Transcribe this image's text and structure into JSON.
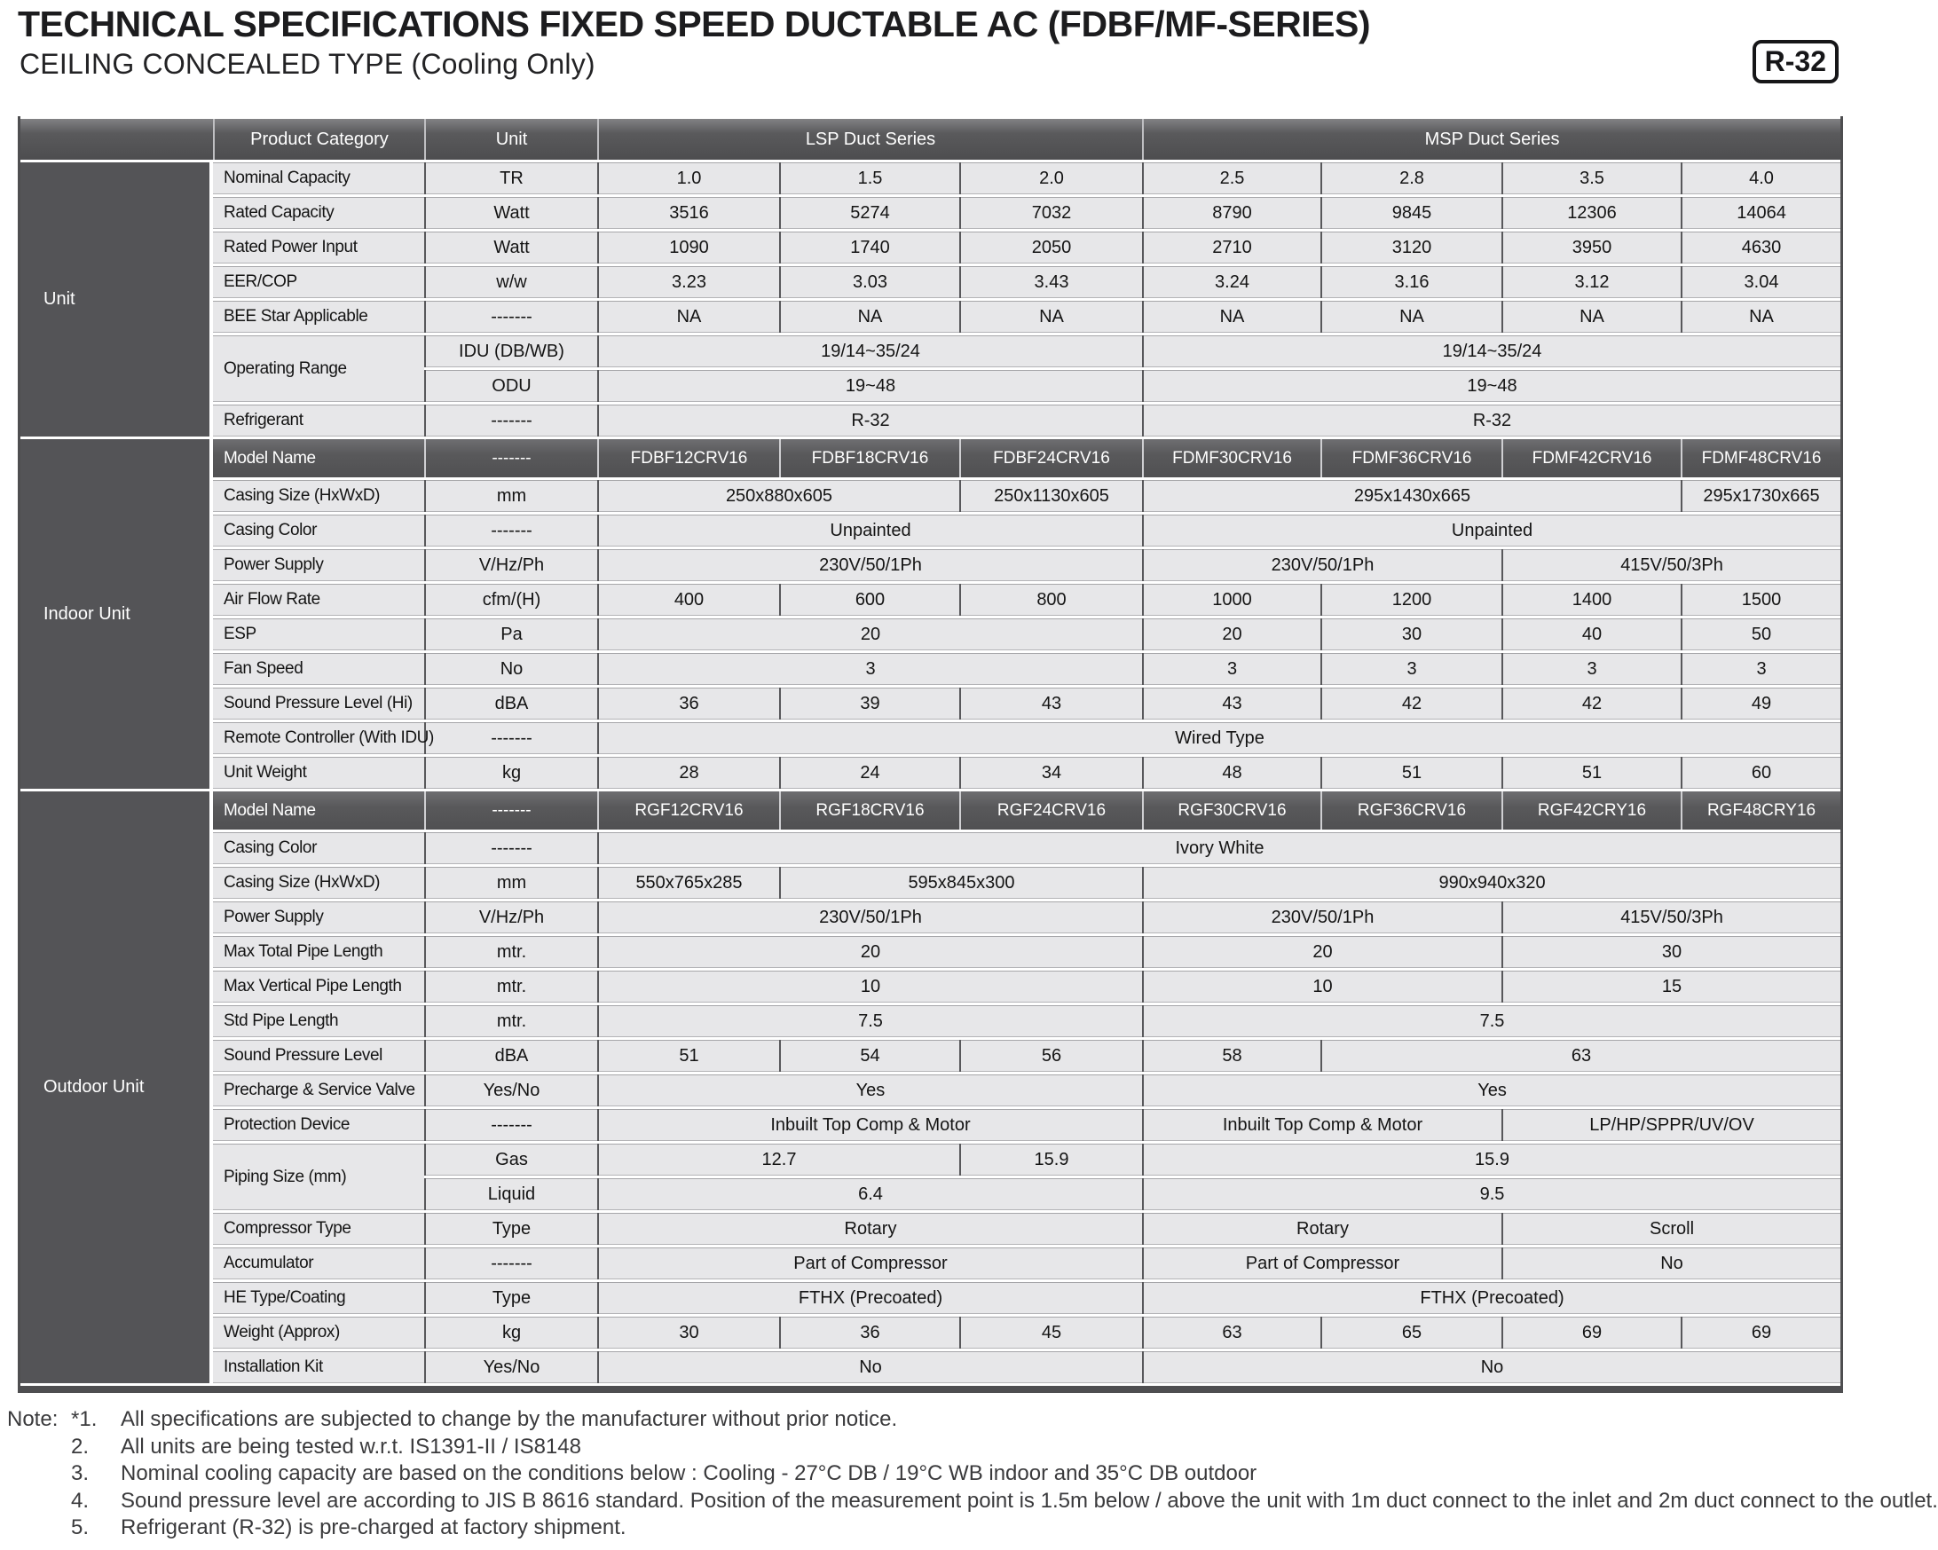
{
  "page": {
    "title": "TECHNICAL SPECIFICATIONS FIXED SPEED DUCTABLE AC (FDBF/MF-SERIES)",
    "subtitle": "CEILING CONCEALED  TYPE (Cooling Only)",
    "refrigerant_badge": "R-32"
  },
  "colors": {
    "header_dark": "#59595b",
    "section_dark": "#545457",
    "cell_light": "#e7e7e9",
    "text_dark": "#141414",
    "text_light": "#ffffff"
  },
  "table": {
    "header": {
      "corner": "",
      "product_category": "Product Category",
      "unit": "Unit",
      "groups": [
        {
          "label": "LSP Duct Series",
          "span": 3
        },
        {
          "label": "MSP Duct Series",
          "span": 4
        }
      ]
    },
    "sections": [
      {
        "label": "Unit",
        "rows": [
          {
            "label": "Nominal Capacity",
            "unit": "TR",
            "cells": [
              {
                "v": "1.0"
              },
              {
                "v": "1.5"
              },
              {
                "v": "2.0"
              },
              {
                "v": "2.5"
              },
              {
                "v": "2.8"
              },
              {
                "v": "3.5"
              },
              {
                "v": "4.0"
              }
            ]
          },
          {
            "label": "Rated Capacity",
            "unit": "Watt",
            "cells": [
              {
                "v": "3516"
              },
              {
                "v": "5274"
              },
              {
                "v": "7032"
              },
              {
                "v": "8790"
              },
              {
                "v": "9845"
              },
              {
                "v": "12306"
              },
              {
                "v": "14064"
              }
            ]
          },
          {
            "label": "Rated Power Input",
            "unit": "Watt",
            "cells": [
              {
                "v": "1090"
              },
              {
                "v": "1740"
              },
              {
                "v": "2050"
              },
              {
                "v": "2710"
              },
              {
                "v": "3120"
              },
              {
                "v": "3950"
              },
              {
                "v": "4630"
              }
            ]
          },
          {
            "label": "EER/COP",
            "unit": "w/w",
            "cells": [
              {
                "v": "3.23"
              },
              {
                "v": "3.03"
              },
              {
                "v": "3.43"
              },
              {
                "v": "3.24"
              },
              {
                "v": "3.16"
              },
              {
                "v": "3.12"
              },
              {
                "v": "3.04"
              }
            ]
          },
          {
            "label": "BEE Star Applicable",
            "unit": "-------",
            "cells": [
              {
                "v": "NA"
              },
              {
                "v": "NA"
              },
              {
                "v": "NA"
              },
              {
                "v": "NA"
              },
              {
                "v": "NA"
              },
              {
                "v": "NA"
              },
              {
                "v": "NA"
              }
            ]
          },
          {
            "label": "Operating Range",
            "label_rowspan": 2,
            "unit": "IDU (DB/WB)",
            "cells": [
              {
                "v": "19/14~35/24",
                "span": 3
              },
              {
                "v": "19/14~35/24",
                "span": 4
              }
            ]
          },
          {
            "unit": "ODU",
            "cells": [
              {
                "v": "19~48",
                "span": 3
              },
              {
                "v": "19~48",
                "span": 4
              }
            ]
          },
          {
            "label": "Refrigerant",
            "unit": "-------",
            "cells": [
              {
                "v": "R-32",
                "span": 3
              },
              {
                "v": "R-32",
                "span": 4
              }
            ]
          }
        ]
      },
      {
        "label": "Indoor Unit",
        "rows": [
          {
            "dark": true,
            "label": "Model Name",
            "unit": "-------",
            "cells": [
              {
                "v": "FDBF12CRV16"
              },
              {
                "v": "FDBF18CRV16"
              },
              {
                "v": "FDBF24CRV16"
              },
              {
                "v": "FDMF30CRV16"
              },
              {
                "v": "FDMF36CRV16"
              },
              {
                "v": "FDMF42CRV16"
              },
              {
                "v": "FDMF48CRV16"
              }
            ]
          },
          {
            "label": "Casing Size (HxWxD)",
            "unit": "mm",
            "cells": [
              {
                "v": "250x880x605",
                "span": 2
              },
              {
                "v": "250x1130x605"
              },
              {
                "v": "295x1430x665",
                "span": 3
              },
              {
                "v": "295x1730x665"
              }
            ]
          },
          {
            "label": "Casing Color",
            "unit": "-------",
            "cells": [
              {
                "v": "Unpainted",
                "span": 3
              },
              {
                "v": "Unpainted",
                "span": 4
              }
            ]
          },
          {
            "label": "Power Supply",
            "unit": "V/Hz/Ph",
            "cells": [
              {
                "v": "230V/50/1Ph",
                "span": 3
              },
              {
                "v": "230V/50/1Ph",
                "span": 2
              },
              {
                "v": "415V/50/3Ph",
                "span": 2
              }
            ]
          },
          {
            "label": "Air Flow Rate",
            "unit": "cfm/(H)",
            "cells": [
              {
                "v": "400"
              },
              {
                "v": "600"
              },
              {
                "v": "800"
              },
              {
                "v": "1000"
              },
              {
                "v": "1200"
              },
              {
                "v": "1400"
              },
              {
                "v": "1500"
              }
            ]
          },
          {
            "label": "ESP",
            "unit": "Pa",
            "cells": [
              {
                "v": "20",
                "span": 3
              },
              {
                "v": "20"
              },
              {
                "v": "30"
              },
              {
                "v": "40"
              },
              {
                "v": "50"
              }
            ]
          },
          {
            "label": "Fan Speed",
            "unit": "No",
            "cells": [
              {
                "v": "3",
                "span": 3
              },
              {
                "v": "3"
              },
              {
                "v": "3"
              },
              {
                "v": "3"
              },
              {
                "v": "3"
              }
            ]
          },
          {
            "label": "Sound Pressure Level (Hi)",
            "unit": "dBA",
            "cells": [
              {
                "v": "36"
              },
              {
                "v": "39"
              },
              {
                "v": "43"
              },
              {
                "v": "43"
              },
              {
                "v": "42"
              },
              {
                "v": "42"
              },
              {
                "v": "49"
              }
            ]
          },
          {
            "label": "Remote Controller (With IDU)",
            "unit": "-------",
            "cells": [
              {
                "v": "Wired Type",
                "span": 7
              }
            ]
          },
          {
            "label": "Unit Weight",
            "unit": "kg",
            "cells": [
              {
                "v": "28"
              },
              {
                "v": "24"
              },
              {
                "v": "34"
              },
              {
                "v": "48"
              },
              {
                "v": "51"
              },
              {
                "v": "51"
              },
              {
                "v": "60"
              }
            ]
          }
        ]
      },
      {
        "label": "Outdoor Unit",
        "rows": [
          {
            "dark": true,
            "label": "Model Name",
            "unit": "-------",
            "cells": [
              {
                "v": "RGF12CRV16"
              },
              {
                "v": "RGF18CRV16"
              },
              {
                "v": "RGF24CRV16"
              },
              {
                "v": "RGF30CRV16"
              },
              {
                "v": "RGF36CRV16"
              },
              {
                "v": "RGF42CRY16"
              },
              {
                "v": "RGF48CRY16"
              }
            ]
          },
          {
            "label": "Casing Color",
            "unit": "-------",
            "cells": [
              {
                "v": "Ivory White",
                "span": 7
              }
            ]
          },
          {
            "label": "Casing Size (HxWxD)",
            "unit": "mm",
            "cells": [
              {
                "v": "550x765x285"
              },
              {
                "v": "595x845x300",
                "span": 2
              },
              {
                "v": "990x940x320",
                "span": 4
              }
            ]
          },
          {
            "label": "Power Supply",
            "unit": "V/Hz/Ph",
            "cells": [
              {
                "v": "230V/50/1Ph",
                "span": 3
              },
              {
                "v": "230V/50/1Ph",
                "span": 2
              },
              {
                "v": "415V/50/3Ph",
                "span": 2
              }
            ]
          },
          {
            "label": "Max Total Pipe Length",
            "unit": "mtr.",
            "cells": [
              {
                "v": "20",
                "span": 3
              },
              {
                "v": "20",
                "span": 2
              },
              {
                "v": "30",
                "span": 2
              }
            ]
          },
          {
            "label": "Max Vertical Pipe Length",
            "unit": "mtr.",
            "cells": [
              {
                "v": "10",
                "span": 3
              },
              {
                "v": "10",
                "span": 2
              },
              {
                "v": "15",
                "span": 2
              }
            ]
          },
          {
            "label": "Std Pipe Length",
            "unit": "mtr.",
            "cells": [
              {
                "v": "7.5",
                "span": 3
              },
              {
                "v": "7.5",
                "span": 4
              }
            ]
          },
          {
            "label": "Sound Pressure Level",
            "unit": "dBA",
            "cells": [
              {
                "v": "51"
              },
              {
                "v": "54"
              },
              {
                "v": "56"
              },
              {
                "v": "58"
              },
              {
                "v": "63",
                "span": 3
              }
            ]
          },
          {
            "label": "Precharge & Service Valve",
            "unit": "Yes/No",
            "cells": [
              {
                "v": "Yes",
                "span": 3
              },
              {
                "v": "Yes",
                "span": 4
              }
            ]
          },
          {
            "label": "Protection Device",
            "unit": "-------",
            "cells": [
              {
                "v": "Inbuilt Top Comp & Motor",
                "span": 3
              },
              {
                "v": "Inbuilt Top Comp & Motor",
                "span": 2
              },
              {
                "v": "LP/HP/SPPR/UV/OV",
                "span": 2
              }
            ]
          },
          {
            "label": "Piping Size (mm)",
            "label_rowspan": 2,
            "unit": "Gas",
            "cells": [
              {
                "v": "12.7",
                "span": 2
              },
              {
                "v": "15.9"
              },
              {
                "v": "15.9",
                "span": 4
              }
            ]
          },
          {
            "unit": "Liquid",
            "cells": [
              {
                "v": "6.4",
                "span": 3
              },
              {
                "v": "9.5",
                "span": 4
              }
            ]
          },
          {
            "label": "Compressor Type",
            "unit": "Type",
            "cells": [
              {
                "v": "Rotary",
                "span": 3
              },
              {
                "v": "Rotary",
                "span": 2
              },
              {
                "v": "Scroll",
                "span": 2
              }
            ]
          },
          {
            "label": "Accumulator",
            "unit": "-------",
            "cells": [
              {
                "v": "Part of Compressor",
                "span": 3
              },
              {
                "v": "Part of Compressor",
                "span": 2
              },
              {
                "v": "No",
                "span": 2
              }
            ]
          },
          {
            "label": "HE Type/Coating",
            "unit": "Type",
            "cells": [
              {
                "v": "FTHX (Precoated)",
                "span": 3
              },
              {
                "v": "FTHX (Precoated)",
                "span": 4
              }
            ]
          },
          {
            "label": "Weight (Approx)",
            "unit": "kg",
            "cells": [
              {
                "v": "30"
              },
              {
                "v": "36"
              },
              {
                "v": "45"
              },
              {
                "v": "63"
              },
              {
                "v": "65"
              },
              {
                "v": "69"
              },
              {
                "v": "69"
              }
            ]
          },
          {
            "label": "Installation Kit",
            "unit": "Yes/No",
            "cells": [
              {
                "v": "No",
                "span": 3
              },
              {
                "v": "No",
                "span": 4
              }
            ]
          }
        ]
      }
    ]
  },
  "notes": {
    "prefix": "Note:",
    "items": [
      {
        "num": "*1.",
        "text": "All specifications are subjected to change by the manufacturer without prior notice."
      },
      {
        "num": "2.",
        "text": "All units are being tested w.r.t. IS1391-II / IS8148"
      },
      {
        "num": "3.",
        "text": "Nominal cooling capacity are based on the conditions below : Cooling - 27°C DB / 19°C WB indoor and 35°C DB outdoor"
      },
      {
        "num": "4.",
        "text": "Sound pressure level are according to JIS B 8616 standard. Position of the measurement point is 1.5m below / above the unit with 1m duct connect to the inlet and 2m duct connect to the outlet."
      },
      {
        "num": "5.",
        "text": "Refrigerant (R-32) is pre-charged at factory shipment."
      }
    ]
  }
}
